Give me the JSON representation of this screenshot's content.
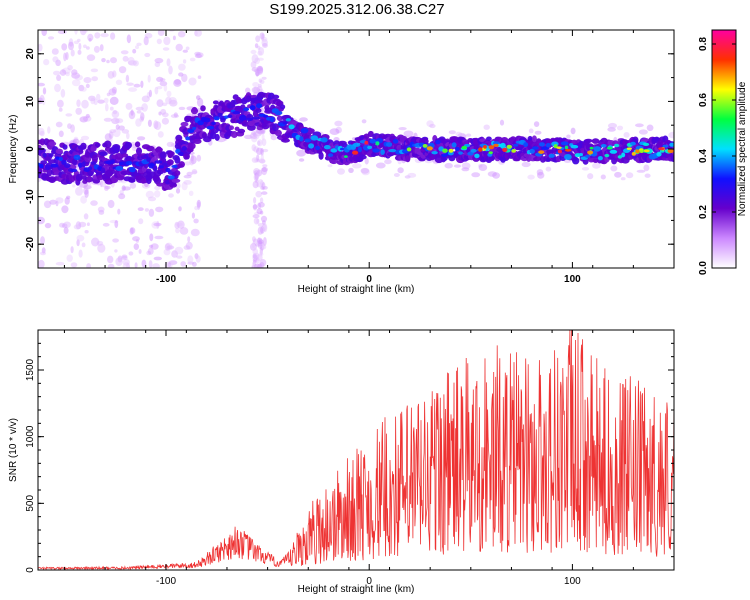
{
  "figure": {
    "title": "S199.2025.312.06.38.C27"
  },
  "chart_data": [
    {
      "type": "heatmap",
      "xlabel": "Height of straight line (km)",
      "ylabel": "Frequency (Hz)",
      "xlim": [
        -163,
        150
      ],
      "ylim": [
        -25,
        25
      ],
      "xticks": [
        -100,
        0,
        100
      ],
      "xtick_labels": [
        "-100",
        "0",
        "100"
      ],
      "yticks": [
        -20,
        -10,
        0,
        10,
        20
      ],
      "ytick_labels": [
        "-20",
        "-10",
        "0",
        "10",
        "20"
      ],
      "colorbar": {
        "label": "Normalized spectral amplitude",
        "range": [
          0.0,
          0.85
        ],
        "ticks": [
          0.0,
          0.2,
          0.4,
          0.6,
          0.8
        ],
        "tick_labels": [
          "0.0",
          "0.2",
          "0.4",
          "0.6",
          "0.8"
        ],
        "colormap": [
          "#ffffff",
          "#cc88ff",
          "#6600cc",
          "#1010ff",
          "#00e0ff",
          "#00ff40",
          "#ffff00",
          "#ff3000",
          "#ff00a0"
        ]
      },
      "ridge": {
        "x": [
          -163,
          -150,
          -130,
          -110,
          -97,
          -92,
          -85,
          -75,
          -65,
          -55,
          -45,
          -38,
          -30,
          -20,
          -10,
          0,
          20,
          50,
          80,
          110,
          150
        ],
        "frequency": [
          -2,
          -3,
          -3,
          -3,
          -5,
          1,
          5,
          6,
          7,
          8,
          7,
          4,
          2,
          0,
          -1,
          1,
          0,
          0,
          0,
          -0.5,
          0
        ]
      }
    },
    {
      "type": "line",
      "xlabel": "Height of straight line (km)",
      "ylabel": "SNR (10 * v/v)",
      "xlim": [
        -163,
        150
      ],
      "ylim": [
        0,
        1800
      ],
      "xticks": [
        -100,
        0,
        100
      ],
      "xtick_labels": [
        "-100",
        "0",
        "100"
      ],
      "yticks": [
        0,
        500,
        1000,
        1500
      ],
      "ytick_labels": [
        "0",
        "500",
        "1000",
        "1500"
      ],
      "line_color": "#ee3333",
      "envelope": {
        "x": [
          -163,
          -120,
          -85,
          -75,
          -65,
          -55,
          -45,
          -40,
          -30,
          -20,
          -10,
          0,
          10,
          20,
          30,
          40,
          50,
          60,
          70,
          80,
          90,
          100,
          110,
          120,
          130,
          140,
          150
        ],
        "snr": [
          20,
          25,
          60,
          200,
          350,
          200,
          80,
          120,
          450,
          650,
          800,
          950,
          1100,
          1200,
          1350,
          1450,
          1500,
          1600,
          1550,
          1500,
          1600,
          1750,
          1500,
          1350,
          1350,
          1250,
          1300
        ]
      }
    }
  ]
}
